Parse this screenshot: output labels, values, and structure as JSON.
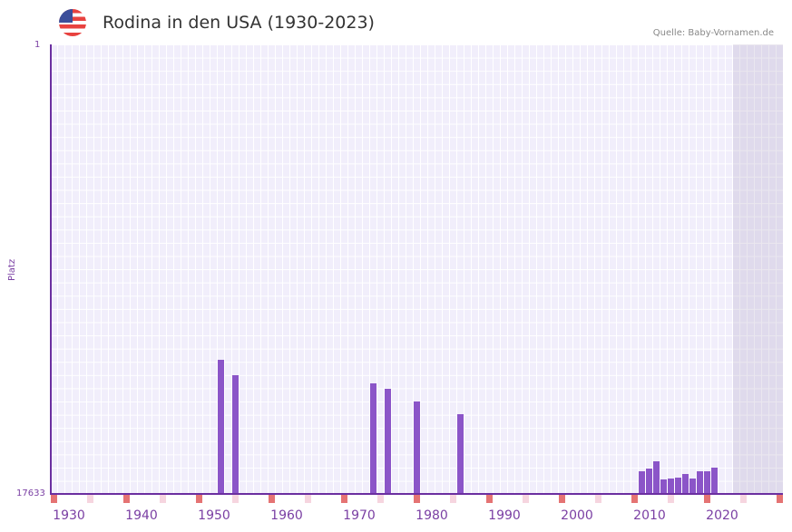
{
  "header": {
    "title": "Rodina in den USA (1930-2023)",
    "source": "Quelle: Baby-Vornamen.de",
    "flag_icon": "us-flag-icon"
  },
  "axis": {
    "y_top": "1",
    "y_bottom": "17633",
    "y_title": "Platz",
    "x_ticks": [
      "1930",
      "1940",
      "1950",
      "1960",
      "1970",
      "1980",
      "1990",
      "2000",
      "2010",
      "2020"
    ]
  },
  "colors": {
    "bar": "#8b55c8",
    "axis": "#6b2fa0",
    "decade_marker": "#e57373",
    "midmarker": "#f6d5df"
  },
  "chart_data": {
    "type": "bar",
    "title": "Rodina in den USA (1930-2023)",
    "xlabel": "",
    "ylabel": "Platz",
    "ylim": [
      17633,
      1
    ],
    "note": "values are bar pixel heights above baseline (rank scale, inverted)",
    "categories": [
      "1951",
      "1953",
      "1972",
      "1974",
      "1978",
      "1984",
      "2009",
      "2010",
      "2011",
      "2012",
      "2013",
      "2014",
      "2015",
      "2016",
      "2017",
      "2018",
      "2019"
    ],
    "values": [
      148,
      131,
      122,
      116,
      102,
      88,
      25,
      28,
      36,
      16,
      17,
      18,
      22,
      17,
      25,
      25,
      29
    ]
  }
}
